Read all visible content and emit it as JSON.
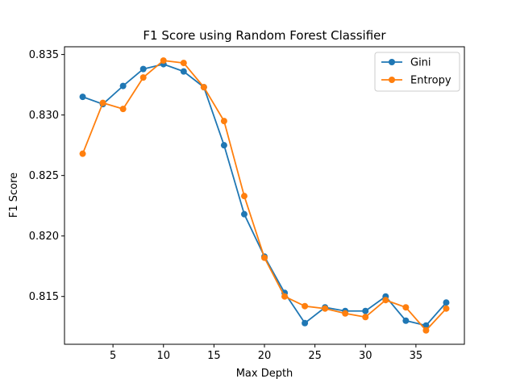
{
  "chart_data": {
    "type": "line",
    "title": "F1 Score using Random Forest Classifier",
    "xlabel": "Max Depth",
    "ylabel": "F1 Score",
    "xlim": [
      0.2,
      39.8
    ],
    "ylim": [
      0.81105,
      0.83564
    ],
    "xticks": [
      5,
      10,
      15,
      20,
      25,
      30,
      35
    ],
    "yticks": [
      0.815,
      0.82,
      0.825,
      0.83,
      0.835
    ],
    "ytick_labels": [
      "0.815",
      "0.820",
      "0.825",
      "0.830",
      "0.835"
    ],
    "grid": false,
    "legend_position": "top-right",
    "x": [
      2,
      4,
      6,
      8,
      10,
      12,
      14,
      16,
      18,
      20,
      22,
      24,
      26,
      28,
      30,
      32,
      34,
      36,
      38
    ],
    "series": [
      {
        "name": "Gini",
        "color": "#1f77b4",
        "values": [
          0.8315,
          0.8309,
          0.8324,
          0.8338,
          0.8342,
          0.8336,
          0.8323,
          0.8275,
          0.8218,
          0.8183,
          0.8153,
          0.8128,
          0.8141,
          0.8138,
          0.8138,
          0.815,
          0.813,
          0.8126,
          0.8145
        ]
      },
      {
        "name": "Entropy",
        "color": "#ff7f0e",
        "values": [
          0.8268,
          0.831,
          0.8305,
          0.8331,
          0.8345,
          0.8343,
          0.8323,
          0.8295,
          0.8233,
          0.8182,
          0.815,
          0.8142,
          0.814,
          0.8136,
          0.8133,
          0.8147,
          0.8141,
          0.8122,
          0.814
        ]
      }
    ]
  }
}
